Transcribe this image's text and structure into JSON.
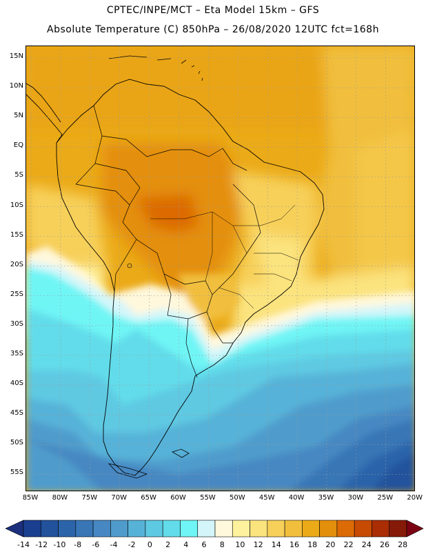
{
  "header": {
    "title_line1": "CPTEC/INPE/MCT –  Eta Model 15km – GFS",
    "title_line2": "Absolute Temperature (C) 850hPa – 26/08/2020 12UTC fct=168h"
  },
  "map": {
    "lat_labels": [
      "15N",
      "10N",
      "5N",
      "EQ",
      "5S",
      "10S",
      "15S",
      "20S",
      "25S",
      "30S",
      "35S",
      "40S",
      "45S",
      "50S",
      "55S"
    ],
    "lon_labels": [
      "85W",
      "80W",
      "75W",
      "70W",
      "65W",
      "60W",
      "55W",
      "50W",
      "45W",
      "40W",
      "35W",
      "30W",
      "25W",
      "20W"
    ]
  },
  "colorbar": {
    "labels": [
      "-14",
      "-12",
      "-10",
      "-8",
      "-6",
      "-4",
      "-2",
      "0",
      "2",
      "4",
      "6",
      "8",
      "10",
      "12",
      "14",
      "16",
      "18",
      "20",
      "22",
      "24",
      "26",
      "28"
    ],
    "colors": [
      "#1b3f90",
      "#22529c",
      "#2c64aa",
      "#3876b6",
      "#4788c2",
      "#4f9ccc",
      "#57b2d8",
      "#5ec9e2",
      "#62dcea",
      "#6ff5f5",
      "#d4f6fa",
      "#fff8dc",
      "#fef29e",
      "#fbe37e",
      "#f7d05a",
      "#f1bf3c",
      "#ebaa18",
      "#e48f0c",
      "#dc6a05",
      "#c84b04",
      "#aa2d04",
      "#851a08"
    ],
    "under_color": "#1b2f7d",
    "over_color": "#7a0212"
  }
}
